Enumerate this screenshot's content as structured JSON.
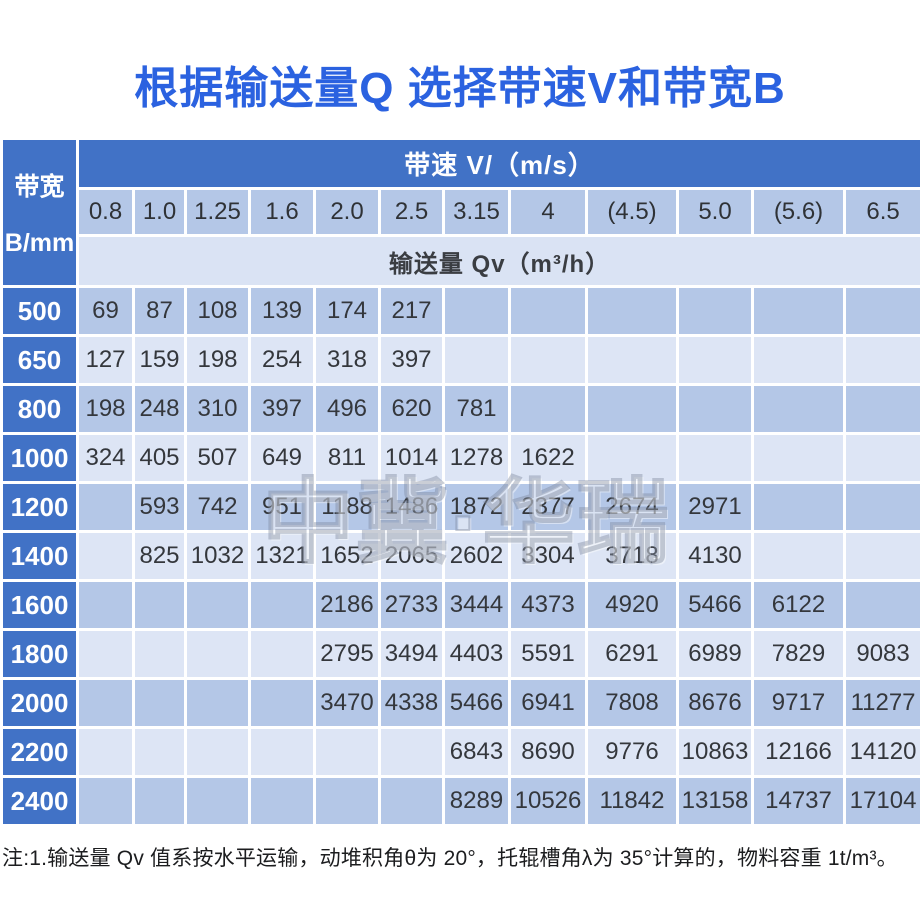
{
  "title": "根据输送量Q 选择带速V和带宽B",
  "watermark": "中冀·华瑞",
  "footnote": "注:1.输送量 Qv 值系按水平运输，动堆积角θ为 20°，托辊槽角λ为 35°计算的，物料容重 1t/m³。",
  "colors": {
    "title_blue": "#2b62e0",
    "header_blue": "#4172c6",
    "stripe_dark": "#b4c7e7",
    "stripe_light": "#dde5f5",
    "gridline": "#ffffff"
  },
  "chart_data": {
    "type": "table",
    "title": "根据输送量Q 选择带速V和带宽B",
    "corner_header": {
      "line1": "带宽",
      "line2": "B/mm"
    },
    "speed_header": "带速 V/（m/s）",
    "qv_header": "输送量 Qv（m³/h）",
    "speed_columns": [
      "0.8",
      "1.0",
      "1.25",
      "1.6",
      "2.0",
      "2.5",
      "3.15",
      "4",
      "(4.5)",
      "5.0",
      "(5.6)",
      "6.5"
    ],
    "rows": [
      {
        "belt_width": "500",
        "values": [
          "69",
          "87",
          "108",
          "139",
          "174",
          "217",
          "",
          "",
          "",
          "",
          "",
          ""
        ]
      },
      {
        "belt_width": "650",
        "values": [
          "127",
          "159",
          "198",
          "254",
          "318",
          "397",
          "",
          "",
          "",
          "",
          "",
          ""
        ]
      },
      {
        "belt_width": "800",
        "values": [
          "198",
          "248",
          "310",
          "397",
          "496",
          "620",
          "781",
          "",
          "",
          "",
          "",
          ""
        ]
      },
      {
        "belt_width": "1000",
        "values": [
          "324",
          "405",
          "507",
          "649",
          "811",
          "1014",
          "1278",
          "1622",
          "",
          "",
          "",
          ""
        ]
      },
      {
        "belt_width": "1200",
        "values": [
          "",
          "593",
          "742",
          "951",
          "1188",
          "1486",
          "1872",
          "2377",
          "2674",
          "2971",
          "",
          ""
        ]
      },
      {
        "belt_width": "1400",
        "values": [
          "",
          "825",
          "1032",
          "1321",
          "1652",
          "2065",
          "2602",
          "3304",
          "3718",
          "4130",
          "",
          ""
        ]
      },
      {
        "belt_width": "1600",
        "values": [
          "",
          "",
          "",
          "",
          "2186",
          "2733",
          "3444",
          "4373",
          "4920",
          "5466",
          "6122",
          ""
        ]
      },
      {
        "belt_width": "1800",
        "values": [
          "",
          "",
          "",
          "",
          "2795",
          "3494",
          "4403",
          "5591",
          "6291",
          "6989",
          "7829",
          "9083"
        ]
      },
      {
        "belt_width": "2000",
        "values": [
          "",
          "",
          "",
          "",
          "3470",
          "4338",
          "5466",
          "6941",
          "7808",
          "8676",
          "9717",
          "11277"
        ]
      },
      {
        "belt_width": "2200",
        "values": [
          "",
          "",
          "",
          "",
          "",
          "",
          "6843",
          "8690",
          "9776",
          "10863",
          "12166",
          "14120"
        ]
      },
      {
        "belt_width": "2400",
        "values": [
          "",
          "",
          "",
          "",
          "",
          "",
          "8289",
          "10526",
          "11842",
          "13158",
          "14737",
          "17104"
        ]
      }
    ]
  }
}
